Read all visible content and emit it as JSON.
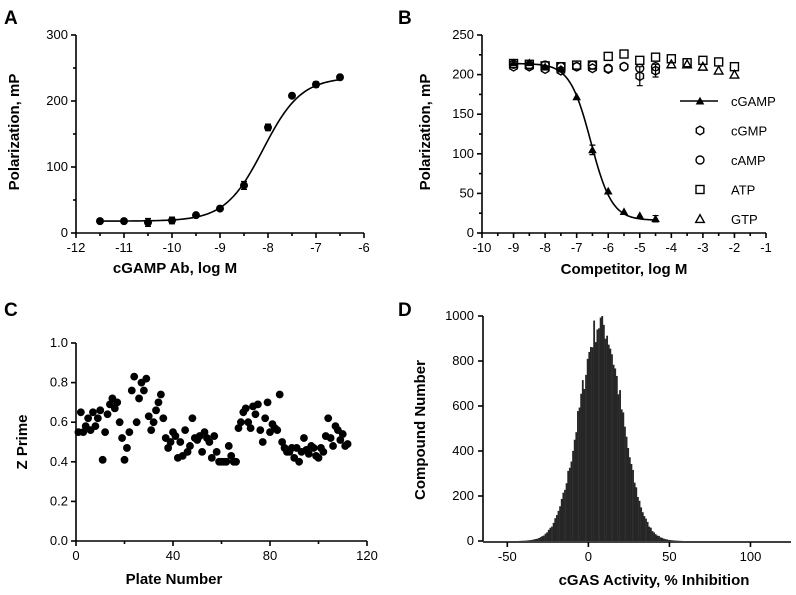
{
  "chart_data": [
    {
      "panel": "A",
      "type": "scatter",
      "xlabel": "cGAMP Ab, log M",
      "ylabel": "Polarization, mP",
      "xlim": [
        -12,
        -6
      ],
      "ylim": [
        0,
        300
      ],
      "x_ticks": [
        -12,
        -11,
        -10,
        -9,
        -8,
        -7,
        -6
      ],
      "y_ticks": [
        0,
        100,
        200,
        300
      ],
      "series": [
        {
          "name": "cGAMP Ab titration",
          "marker": "circle",
          "x": [
            -11.5,
            -11.0,
            -10.5,
            -10.0,
            -9.5,
            -9.0,
            -8.5,
            -8.0,
            -7.5,
            -7.0,
            -6.5
          ],
          "y": [
            18,
            18,
            16,
            19,
            27,
            37,
            72,
            160,
            208,
            225,
            236
          ],
          "err": [
            0,
            0,
            6,
            5,
            0,
            0,
            6,
            5,
            0,
            4,
            0
          ]
        }
      ],
      "fit": {
        "bottom": 18,
        "top": 236,
        "logEC50": -8.1,
        "hill": 1.1
      }
    },
    {
      "panel": "B",
      "type": "scatter",
      "xlabel": "Competitor, log M",
      "ylabel": "Polarization, mP",
      "xlim": [
        -10,
        -1
      ],
      "ylim": [
        0,
        250
      ],
      "x_ticks": [
        -10,
        -9,
        -8,
        -7,
        -6,
        -5,
        -4,
        -3,
        -2,
        -1
      ],
      "y_ticks": [
        0,
        50,
        100,
        150,
        200,
        250
      ],
      "series": [
        {
          "name": "cGAMP",
          "marker": "triangle-filled",
          "x": [
            -9.0,
            -8.5,
            -8.0,
            -7.5,
            -7.0,
            -6.5,
            -6.0,
            -5.5,
            -5.0,
            -4.5
          ],
          "y": [
            215,
            215,
            210,
            207,
            172,
            105,
            53,
            27,
            22,
            18
          ],
          "err": [
            0,
            0,
            0,
            0,
            0,
            6,
            0,
            0,
            0,
            4
          ]
        },
        {
          "name": "cGMP",
          "marker": "hexagon-open",
          "x": [
            -9.0,
            -8.5,
            -8.0,
            -7.5,
            -7.0,
            -6.5,
            -6.0,
            -5.5,
            -5.0,
            -4.5
          ],
          "y": [
            210,
            210,
            207,
            205,
            210,
            208,
            207,
            210,
            198,
            205
          ],
          "err": [
            0,
            0,
            0,
            0,
            0,
            0,
            0,
            0,
            12,
            8
          ]
        },
        {
          "name": "cAMP",
          "marker": "circle-open",
          "x": [
            -9.0,
            -8.5,
            -8.0,
            -7.5,
            -7.0,
            -6.5,
            -6.0,
            -5.5,
            -5.0,
            -4.5
          ],
          "y": [
            213,
            212,
            212,
            210,
            210,
            212,
            208,
            210,
            208,
            210
          ],
          "err": [
            0,
            0,
            0,
            0,
            0,
            0,
            0,
            0,
            0,
            0
          ]
        },
        {
          "name": "ATP",
          "marker": "square-open",
          "x": [
            -9.0,
            -8.5,
            -8.0,
            -7.5,
            -7.0,
            -6.5,
            -6.0,
            -5.5,
            -5.0,
            -4.5,
            -4.0,
            -3.5,
            -3.0,
            -2.5,
            -2.0
          ],
          "y": [
            214,
            213,
            211,
            210,
            212,
            212,
            223,
            226,
            218,
            222,
            220,
            215,
            218,
            216,
            210
          ],
          "err": [
            0,
            0,
            0,
            0,
            0,
            0,
            0,
            0,
            0,
            0,
            0,
            0,
            0,
            0,
            0
          ]
        },
        {
          "name": "GTP",
          "marker": "triangle-open",
          "x": [
            -4.0,
            -3.5,
            -3.0,
            -2.5,
            -2.0
          ],
          "y": [
            213,
            213,
            210,
            205,
            200
          ],
          "err": [
            0,
            0,
            0,
            0,
            0
          ]
        }
      ],
      "fit": {
        "top": 214,
        "bottom": 16,
        "logIC50": -6.55,
        "hill": 1.3
      }
    },
    {
      "panel": "C",
      "type": "scatter",
      "xlabel": "Plate Number",
      "ylabel": "Z Prime",
      "xlim": [
        0,
        120
      ],
      "ylim": [
        0,
        1
      ],
      "x_ticks": [
        0,
        40,
        80,
        120
      ],
      "y_ticks": [
        "0.0",
        "0.2",
        "0.4",
        "0.6",
        "0.8",
        "1.0"
      ],
      "x": [
        1,
        2,
        3,
        4,
        5,
        6,
        7,
        8,
        9,
        10,
        11,
        12,
        13,
        14,
        15,
        16,
        17,
        18,
        19,
        20,
        21,
        22,
        23,
        24,
        25,
        26,
        27,
        28,
        29,
        30,
        31,
        32,
        33,
        34,
        35,
        36,
        37,
        38,
        39,
        40,
        41,
        42,
        43,
        44,
        45,
        46,
        47,
        48,
        49,
        50,
        51,
        52,
        53,
        54,
        55,
        56,
        57,
        58,
        59,
        60,
        61,
        62,
        63,
        64,
        65,
        66,
        67,
        68,
        69,
        70,
        71,
        72,
        73,
        74,
        75,
        76,
        77,
        78,
        79,
        80,
        81,
        82,
        83,
        84,
        85,
        86,
        87,
        88,
        89,
        90,
        91,
        92,
        93,
        94,
        95,
        96,
        97,
        98,
        99,
        100,
        101,
        102,
        103,
        104,
        105,
        106,
        107,
        108,
        109,
        110,
        111,
        112
      ],
      "y": [
        0.55,
        0.65,
        0.55,
        0.58,
        0.62,
        0.56,
        0.65,
        0.58,
        0.62,
        0.66,
        0.41,
        0.55,
        0.64,
        0.69,
        0.72,
        0.67,
        0.7,
        0.6,
        0.52,
        0.41,
        0.47,
        0.55,
        0.76,
        0.83,
        0.6,
        0.72,
        0.8,
        0.76,
        0.82,
        0.63,
        0.56,
        0.6,
        0.66,
        0.7,
        0.74,
        0.62,
        0.52,
        0.47,
        0.5,
        0.55,
        0.53,
        0.42,
        0.5,
        0.43,
        0.56,
        0.45,
        0.48,
        0.62,
        0.52,
        0.51,
        0.53,
        0.45,
        0.55,
        0.52,
        0.5,
        0.42,
        0.53,
        0.45,
        0.4,
        0.4,
        0.4,
        0.4,
        0.48,
        0.43,
        0.4,
        0.4,
        0.57,
        0.6,
        0.65,
        0.67,
        0.6,
        0.57,
        0.68,
        0.64,
        0.69,
        0.56,
        0.5,
        0.62,
        0.7,
        0.55,
        0.59,
        0.57,
        0.56,
        0.74,
        0.5,
        0.47,
        0.45,
        0.45,
        0.47,
        0.42,
        0.47,
        0.4,
        0.45,
        0.52,
        0.46,
        0.44,
        0.48,
        0.47,
        0.43,
        0.42,
        0.47,
        0.45,
        0.53,
        0.62,
        0.52,
        0.48,
        0.58,
        0.56,
        0.51,
        0.54,
        0.48,
        0.49
      ]
    },
    {
      "panel": "D",
      "type": "bar",
      "subtype": "histogram",
      "xlabel": "cGAS Activity, % Inhibition",
      "ylabel": "Compound Number",
      "xlim": [
        -65,
        125
      ],
      "ylim": [
        0,
        1000
      ],
      "x_ticks": [
        -50,
        0,
        50,
        100
      ],
      "y_ticks": [
        0,
        200,
        400,
        600,
        800,
        1000
      ],
      "bin_width": 1,
      "distribution": "approximately normal",
      "peak_x": 7,
      "peak_count": 1000,
      "spread_sd": 13
    }
  ],
  "panel_labels": [
    "A",
    "B",
    "C",
    "D"
  ]
}
